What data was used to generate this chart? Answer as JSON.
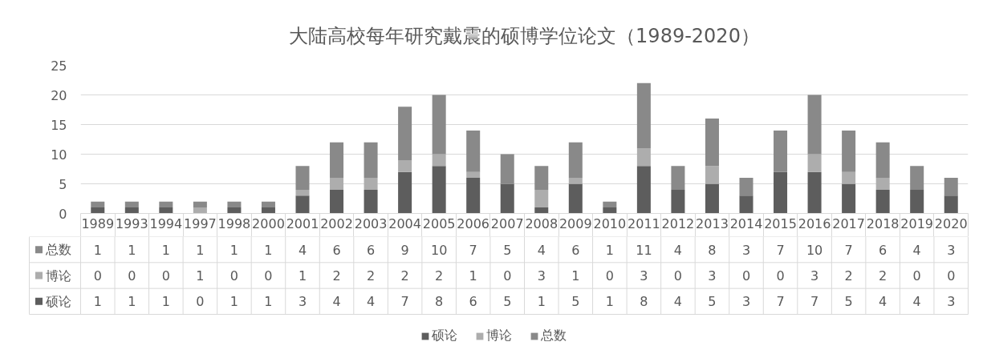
{
  "chart_data": {
    "type": "bar",
    "title": "大陆高校每年研究戴震的硕博学位论文（1989-2020）",
    "categories": [
      "1989",
      "1993",
      "1994",
      "1997",
      "1998",
      "2000",
      "2001",
      "2002",
      "2003",
      "2004",
      "2005",
      "2006",
      "2007",
      "2008",
      "2009",
      "2010",
      "2011",
      "2012",
      "2013",
      "2014",
      "2015",
      "2016",
      "2017",
      "2018",
      "2019",
      "2020"
    ],
    "series": [
      {
        "name": "硕论",
        "color": "#5d5d5d",
        "values": [
          1,
          1,
          1,
          0,
          1,
          1,
          3,
          4,
          4,
          7,
          8,
          6,
          5,
          1,
          5,
          1,
          8,
          4,
          5,
          3,
          7,
          7,
          5,
          4,
          4,
          3
        ]
      },
      {
        "name": "博论",
        "color": "#adadad",
        "values": [
          0,
          0,
          0,
          1,
          0,
          0,
          1,
          2,
          2,
          2,
          2,
          1,
          0,
          3,
          1,
          0,
          3,
          0,
          3,
          0,
          0,
          3,
          2,
          2,
          0,
          0
        ]
      },
      {
        "name": "总数",
        "color": "#898989",
        "values": [
          1,
          1,
          1,
          1,
          1,
          1,
          4,
          6,
          6,
          9,
          10,
          7,
          5,
          4,
          6,
          1,
          11,
          4,
          8,
          3,
          7,
          10,
          7,
          6,
          4,
          3
        ]
      }
    ],
    "stacked": true,
    "ylim": [
      0,
      25
    ],
    "yticks": [
      0,
      5,
      10,
      15,
      20,
      25
    ],
    "grid": "y",
    "legend": "bottom",
    "data_labels": true
  }
}
